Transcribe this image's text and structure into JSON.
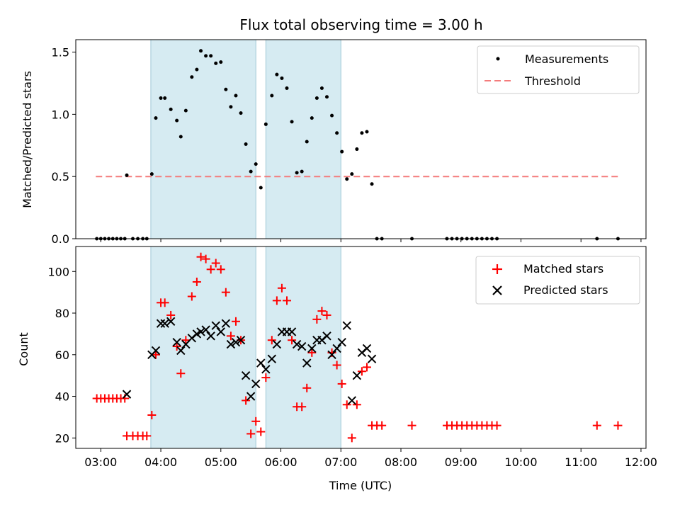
{
  "figure": {
    "title": "Flux total observing time = 3.00 h"
  },
  "chart_data": [
    {
      "type": "scatter",
      "ylabel": "Matched/Predicted stars",
      "ylim": [
        0,
        1.6
      ],
      "yticks": [
        0.0,
        0.5,
        1.0,
        1.5
      ],
      "xlim": [
        "02:35",
        "12:05"
      ],
      "grid": false,
      "legend_position": "top-right",
      "legend": [
        "Measurements",
        "Threshold"
      ],
      "shaded_intervals": [
        [
          "03:50",
          "05:35"
        ],
        [
          "05:45",
          "07:00"
        ]
      ],
      "threshold": {
        "name": "Threshold",
        "y": 0.5,
        "x_start": "02:55",
        "x_end": "11:38",
        "color": "#f47c7c"
      },
      "series": [
        {
          "name": "Measurements",
          "marker": "dot",
          "color": "#000000",
          "points": [
            [
              "02:56",
              0
            ],
            [
              "03:00",
              0
            ],
            [
              "03:04",
              0
            ],
            [
              "03:08",
              0
            ],
            [
              "03:12",
              0
            ],
            [
              "03:16",
              0
            ],
            [
              "03:20",
              0
            ],
            [
              "03:24",
              0
            ],
            [
              "03:26",
              0.51
            ],
            [
              "03:32",
              0
            ],
            [
              "03:37",
              0
            ],
            [
              "03:42",
              0
            ],
            [
              "03:46",
              0
            ],
            [
              "03:51",
              0.52
            ],
            [
              "03:55",
              0.97
            ],
            [
              "04:00",
              1.13
            ],
            [
              "04:04",
              1.13
            ],
            [
              "04:10",
              1.04
            ],
            [
              "04:16",
              0.95
            ],
            [
              "04:20",
              0.82
            ],
            [
              "04:25",
              1.03
            ],
            [
              "04:31",
              1.3
            ],
            [
              "04:36",
              1.36
            ],
            [
              "04:40",
              1.51
            ],
            [
              "04:45",
              1.47
            ],
            [
              "04:50",
              1.47
            ],
            [
              "04:55",
              1.41
            ],
            [
              "05:00",
              1.42
            ],
            [
              "05:05",
              1.2
            ],
            [
              "05:10",
              1.06
            ],
            [
              "05:15",
              1.15
            ],
            [
              "05:20",
              1.01
            ],
            [
              "05:25",
              0.76
            ],
            [
              "05:30",
              0.54
            ],
            [
              "05:35",
              0.6
            ],
            [
              "05:40",
              0.41
            ],
            [
              "05:45",
              0.92
            ],
            [
              "05:51",
              1.15
            ],
            [
              "05:56",
              1.32
            ],
            [
              "06:01",
              1.29
            ],
            [
              "06:06",
              1.21
            ],
            [
              "06:11",
              0.94
            ],
            [
              "06:16",
              0.53
            ],
            [
              "06:21",
              0.54
            ],
            [
              "06:26",
              0.78
            ],
            [
              "06:31",
              0.97
            ],
            [
              "06:36",
              1.13
            ],
            [
              "06:41",
              1.21
            ],
            [
              "06:46",
              1.14
            ],
            [
              "06:51",
              0.99
            ],
            [
              "06:56",
              0.85
            ],
            [
              "07:01",
              0.7
            ],
            [
              "07:06",
              0.48
            ],
            [
              "07:11",
              0.52
            ],
            [
              "07:16",
              0.72
            ],
            [
              "07:21",
              0.85
            ],
            [
              "07:26",
              0.86
            ],
            [
              "07:31",
              0.44
            ],
            [
              "07:36",
              0
            ],
            [
              "07:41",
              0
            ],
            [
              "08:11",
              0
            ],
            [
              "08:46",
              0
            ],
            [
              "08:51",
              0
            ],
            [
              "08:56",
              0
            ],
            [
              "09:01",
              0
            ],
            [
              "09:06",
              0
            ],
            [
              "09:11",
              0
            ],
            [
              "09:16",
              0
            ],
            [
              "09:21",
              0
            ],
            [
              "09:26",
              0
            ],
            [
              "09:31",
              0
            ],
            [
              "09:36",
              0
            ],
            [
              "11:16",
              0
            ],
            [
              "11:37",
              0
            ]
          ]
        }
      ]
    },
    {
      "type": "scatter",
      "xlabel": "Time (UTC)",
      "ylabel": "Count",
      "ylim": [
        15,
        112
      ],
      "yticks": [
        20,
        40,
        60,
        80,
        100
      ],
      "xlim": [
        "02:35",
        "12:05"
      ],
      "xticks": [
        "03:00",
        "04:00",
        "05:00",
        "06:00",
        "07:00",
        "08:00",
        "09:00",
        "10:00",
        "11:00",
        "12:00"
      ],
      "grid": false,
      "legend_position": "top-right",
      "legend": [
        "Matched stars",
        "Predicted stars"
      ],
      "shaded_intervals": [
        [
          "03:50",
          "05:35"
        ],
        [
          "05:45",
          "07:00"
        ]
      ],
      "series": [
        {
          "name": "Matched stars",
          "marker": "plus",
          "color": "#ff0000",
          "points": [
            [
              "02:56",
              39
            ],
            [
              "03:00",
              39
            ],
            [
              "03:04",
              39
            ],
            [
              "03:08",
              39
            ],
            [
              "03:12",
              39
            ],
            [
              "03:16",
              39
            ],
            [
              "03:20",
              39
            ],
            [
              "03:24",
              39
            ],
            [
              "03:26",
              21
            ],
            [
              "03:32",
              21
            ],
            [
              "03:37",
              21
            ],
            [
              "03:42",
              21
            ],
            [
              "03:46",
              21
            ],
            [
              "03:51",
              31
            ],
            [
              "03:55",
              60
            ],
            [
              "04:00",
              85
            ],
            [
              "04:04",
              85
            ],
            [
              "04:10",
              79
            ],
            [
              "04:16",
              64
            ],
            [
              "04:20",
              51
            ],
            [
              "04:25",
              67
            ],
            [
              "04:31",
              88
            ],
            [
              "04:36",
              95
            ],
            [
              "04:40",
              107
            ],
            [
              "04:45",
              106
            ],
            [
              "04:50",
              101
            ],
            [
              "04:55",
              104
            ],
            [
              "05:00",
              101
            ],
            [
              "05:05",
              90
            ],
            [
              "05:10",
              69
            ],
            [
              "05:15",
              76
            ],
            [
              "05:20",
              67
            ],
            [
              "05:25",
              38
            ],
            [
              "05:30",
              22
            ],
            [
              "05:35",
              28
            ],
            [
              "05:40",
              23
            ],
            [
              "05:45",
              49
            ],
            [
              "05:51",
              67
            ],
            [
              "05:56",
              86
            ],
            [
              "06:01",
              92
            ],
            [
              "06:06",
              86
            ],
            [
              "06:11",
              67
            ],
            [
              "06:16",
              35
            ],
            [
              "06:21",
              35
            ],
            [
              "06:26",
              44
            ],
            [
              "06:31",
              61
            ],
            [
              "06:36",
              77
            ],
            [
              "06:41",
              81
            ],
            [
              "06:46",
              79
            ],
            [
              "06:51",
              61
            ],
            [
              "06:56",
              55
            ],
            [
              "07:01",
              46
            ],
            [
              "07:06",
              36
            ],
            [
              "07:11",
              20
            ],
            [
              "07:16",
              36
            ],
            [
              "07:21",
              52
            ],
            [
              "07:26",
              54
            ],
            [
              "07:31",
              26
            ],
            [
              "07:36",
              26
            ],
            [
              "07:41",
              26
            ],
            [
              "08:11",
              26
            ],
            [
              "08:46",
              26
            ],
            [
              "08:51",
              26
            ],
            [
              "08:56",
              26
            ],
            [
              "09:01",
              26
            ],
            [
              "09:06",
              26
            ],
            [
              "09:11",
              26
            ],
            [
              "09:16",
              26
            ],
            [
              "09:21",
              26
            ],
            [
              "09:26",
              26
            ],
            [
              "09:31",
              26
            ],
            [
              "09:36",
              26
            ],
            [
              "11:16",
              26
            ],
            [
              "11:37",
              26
            ]
          ]
        },
        {
          "name": "Predicted stars",
          "marker": "x",
          "color": "#000000",
          "points": [
            [
              "03:26",
              41
            ],
            [
              "03:51",
              60
            ],
            [
              "03:55",
              62
            ],
            [
              "04:00",
              75
            ],
            [
              "04:04",
              75
            ],
            [
              "04:10",
              76
            ],
            [
              "04:16",
              66
            ],
            [
              "04:20",
              62
            ],
            [
              "04:25",
              65
            ],
            [
              "04:31",
              68
            ],
            [
              "04:36",
              70
            ],
            [
              "04:40",
              71
            ],
            [
              "04:45",
              72
            ],
            [
              "04:50",
              69
            ],
            [
              "04:55",
              74
            ],
            [
              "05:00",
              71
            ],
            [
              "05:05",
              75
            ],
            [
              "05:10",
              65
            ],
            [
              "05:15",
              66
            ],
            [
              "05:20",
              67
            ],
            [
              "05:25",
              50
            ],
            [
              "05:30",
              40
            ],
            [
              "05:35",
              46
            ],
            [
              "05:40",
              56
            ],
            [
              "05:45",
              53
            ],
            [
              "05:51",
              58
            ],
            [
              "05:56",
              65
            ],
            [
              "06:01",
              71
            ],
            [
              "06:06",
              71
            ],
            [
              "06:11",
              71
            ],
            [
              "06:16",
              65
            ],
            [
              "06:21",
              64
            ],
            [
              "06:26",
              56
            ],
            [
              "06:31",
              63
            ],
            [
              "06:36",
              67
            ],
            [
              "06:41",
              67
            ],
            [
              "06:46",
              69
            ],
            [
              "06:51",
              60
            ],
            [
              "06:56",
              63
            ],
            [
              "07:01",
              66
            ],
            [
              "07:06",
              74
            ],
            [
              "07:11",
              38
            ],
            [
              "07:16",
              50
            ],
            [
              "07:21",
              61
            ],
            [
              "07:26",
              63
            ],
            [
              "07:31",
              58
            ]
          ]
        }
      ]
    }
  ]
}
